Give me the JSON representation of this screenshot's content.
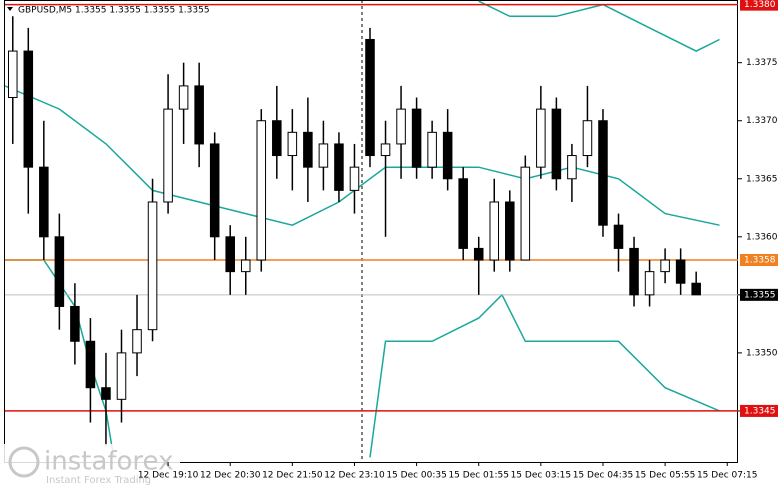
{
  "chart_data": {
    "type": "candlestick",
    "title": "GBPUSD,M5  1.3355 1.3355 1.3355 1.3355",
    "watermark": "instaforex",
    "watermark_sub": "Instant Forex Trading",
    "bull_color": "#ffffff",
    "bear_color": "#000000",
    "band_color": "#1aa89b",
    "xlim": [
      -0.5,
      46.5
    ],
    "xticks": [
      {
        "value": 10,
        "label": "12 Dec 19:10"
      },
      {
        "value": 14,
        "label": "12 Dec 20:30"
      },
      {
        "value": 18,
        "label": "12 Dec 21:50"
      },
      {
        "value": 22,
        "label": "12 Dec 23:10"
      },
      {
        "value": 26,
        "label": "15 Dec 00:35"
      },
      {
        "value": 30,
        "label": "15 Dec 01:55"
      },
      {
        "value": 34,
        "label": "15 Dec 03:15"
      },
      {
        "value": 38,
        "label": "15 Dec 04:35"
      },
      {
        "value": 42,
        "label": "15 Dec 05:55"
      },
      {
        "value": 46,
        "label": "15 Dec 07:15"
      }
    ],
    "ylim": [
      1.33406,
      1.33804
    ],
    "yticks": [
      1.3345,
      {
        "value": 1.335,
        "label": "1.3350"
      },
      1.3355,
      {
        "value": 1.336,
        "label": "1.3360"
      },
      1.3365,
      {
        "value": 1.337,
        "label": "1.3370"
      },
      1.3375
    ],
    "levels": [
      {
        "value": 1.338,
        "label": "1.3380",
        "color": "#e01010"
      },
      {
        "value": 1.3358,
        "label": "1.3358",
        "color": "#f08020"
      },
      {
        "value": 1.3355,
        "label": "1.3355",
        "color": "#000000"
      },
      {
        "value": 1.3345,
        "label": "1.3345",
        "color": "#e01010"
      }
    ],
    "candles": {
      "open": [
        1.3372,
        1.3376,
        1.3366,
        1.336,
        1.3354,
        1.3351,
        1.3347,
        1.3346,
        1.335,
        1.3352,
        1.3363,
        1.3371,
        1.3373,
        1.3368,
        1.336,
        1.3357,
        1.3358,
        1.337,
        1.3367,
        1.3369,
        1.3366,
        1.3368,
        1.3364,
        1.3377,
        1.3367,
        1.3368,
        1.3371,
        1.3366,
        1.3369,
        1.3365,
        1.3359,
        1.3358,
        1.3363,
        1.3358,
        1.3366,
        1.3371,
        1.3365,
        1.3367,
        1.337,
        1.3361,
        1.3359,
        1.3355,
        1.3357,
        1.3358,
        1.3356
      ],
      "high": [
        1.3379,
        1.3378,
        1.337,
        1.3362,
        1.3356,
        1.3353,
        1.335,
        1.3352,
        1.3355,
        1.3365,
        1.3374,
        1.3375,
        1.3375,
        1.3369,
        1.3361,
        1.336,
        1.3371,
        1.3373,
        1.3371,
        1.3372,
        1.337,
        1.3369,
        1.3368,
        1.3378,
        1.337,
        1.3373,
        1.3372,
        1.337,
        1.3371,
        1.3366,
        1.336,
        1.3365,
        1.3364,
        1.3367,
        1.3373,
        1.3372,
        1.3368,
        1.3373,
        1.3371,
        1.3362,
        1.336,
        1.3358,
        1.3359,
        1.3359,
        1.3357
      ],
      "low": [
        1.3368,
        1.3362,
        1.3358,
        1.3352,
        1.3349,
        1.3344,
        1.3342,
        1.3344,
        1.3348,
        1.3351,
        1.3362,
        1.3368,
        1.3366,
        1.3358,
        1.3355,
        1.3355,
        1.3357,
        1.3365,
        1.3364,
        1.3363,
        1.3364,
        1.3363,
        1.3362,
        1.3366,
        1.336,
        1.3365,
        1.3365,
        1.3365,
        1.3364,
        1.3358,
        1.3355,
        1.3357,
        1.3357,
        1.3358,
        1.3365,
        1.3364,
        1.3363,
        1.3366,
        1.336,
        1.3357,
        1.3354,
        1.3354,
        1.3356,
        1.3355,
        1.3355
      ],
      "close": [
        1.3376,
        1.3366,
        1.336,
        1.3354,
        1.3351,
        1.3347,
        1.3346,
        1.335,
        1.3352,
        1.3363,
        1.3371,
        1.3373,
        1.3368,
        1.336,
        1.3357,
        1.3358,
        1.337,
        1.3367,
        1.3369,
        1.3366,
        1.3368,
        1.3364,
        1.3366,
        1.3367,
        1.3368,
        1.3371,
        1.3366,
        1.3369,
        1.3365,
        1.3359,
        1.3358,
        1.3363,
        1.3358,
        1.3366,
        1.3371,
        1.3365,
        1.3367,
        1.337,
        1.3361,
        1.3359,
        1.3355,
        1.3357,
        1.3358,
        1.3356,
        1.3355
      ]
    },
    "bands": [
      {
        "x": [
          30,
          32,
          35,
          38,
          41,
          44,
          45.5
        ],
        "values": [
          1.33803,
          1.3379,
          1.3379,
          1.338,
          1.3378,
          1.3376,
          1.3377
        ]
      },
      {
        "x": [
          -0.5,
          3,
          6,
          9,
          12,
          15,
          18,
          21,
          24,
          27,
          30,
          33,
          36,
          39,
          42,
          45.5
        ],
        "values": [
          1.3373,
          1.3371,
          1.3368,
          1.3364,
          1.3363,
          1.3362,
          1.3361,
          1.3363,
          1.3366,
          1.3366,
          1.3366,
          1.3365,
          1.3366,
          1.3365,
          1.3362,
          1.3361
        ]
      },
      {
        "x": [
          -0.5,
          2,
          4,
          5,
          6,
          6.5,
          21.5,
          23,
          24,
          27,
          30,
          31.5,
          33,
          37,
          39,
          42,
          45.5
        ],
        "values": [
          1.3358,
          1.3358,
          1.3354,
          1.3349,
          1.3345,
          1.3341,
          null,
          1.3341,
          1.3351,
          1.3351,
          1.3353,
          1.3355,
          1.3351,
          1.3351,
          1.3351,
          1.3347,
          1.3345
        ]
      }
    ]
  }
}
